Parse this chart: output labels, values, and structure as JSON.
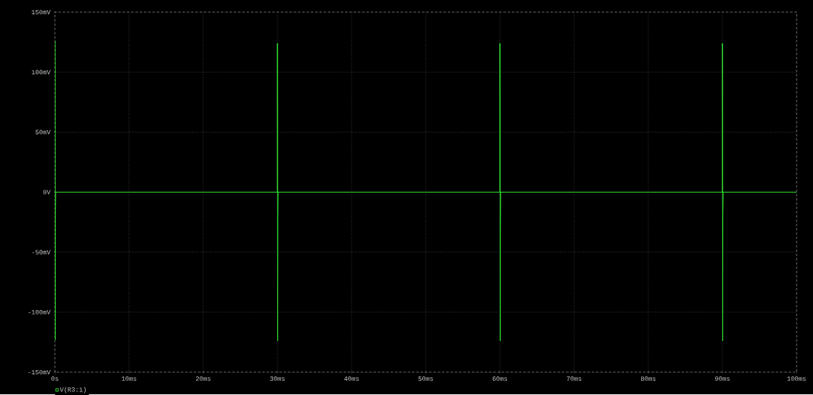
{
  "chart_data": {
    "type": "line",
    "grid": true,
    "legend": "bottom left",
    "x": [
      0,
      0,
      0.02,
      0.04,
      0.06,
      0.1,
      30,
      30,
      30.02,
      30.04,
      30.06,
      30.1,
      60,
      60,
      60.02,
      60.04,
      60.06,
      60.1,
      90,
      90,
      90.02,
      90.04,
      90.06,
      90.1,
      100
    ],
    "series": [
      {
        "name": "V(R3:1)",
        "color": "#33ff33",
        "values": [
          0,
          126,
          48,
          -123,
          -18,
          0,
          0,
          124,
          37,
          -124,
          -20,
          0,
          0,
          124,
          54,
          -124,
          -37,
          0,
          0,
          124,
          54,
          -124,
          -19,
          0,
          0
        ]
      }
    ],
    "xlim": [
      0,
      100
    ],
    "xticks": [
      {
        "value": 0,
        "label": "0s"
      },
      {
        "value": 10,
        "label": "10ms"
      },
      {
        "value": 20,
        "label": "20ms"
      },
      {
        "value": 30,
        "label": "30ms"
      },
      {
        "value": 40,
        "label": "40ms"
      },
      {
        "value": 50,
        "label": "50ms"
      },
      {
        "value": 60,
        "label": "60ms"
      },
      {
        "value": 70,
        "label": "70ms"
      },
      {
        "value": 80,
        "label": "80ms"
      },
      {
        "value": 90,
        "label": "90ms"
      },
      {
        "value": 100,
        "label": "100ms"
      }
    ],
    "ylim": [
      -150,
      150
    ],
    "yticks": [
      {
        "value": -150,
        "label": "-150mV"
      },
      {
        "value": -100,
        "label": "-100mV"
      },
      {
        "value": -50,
        "label": "-50mV"
      },
      {
        "value": 0,
        "label": "0V"
      },
      {
        "value": 50,
        "label": "50mV"
      },
      {
        "value": 100,
        "label": "100mV"
      },
      {
        "value": 150,
        "label": "150mV"
      }
    ]
  }
}
